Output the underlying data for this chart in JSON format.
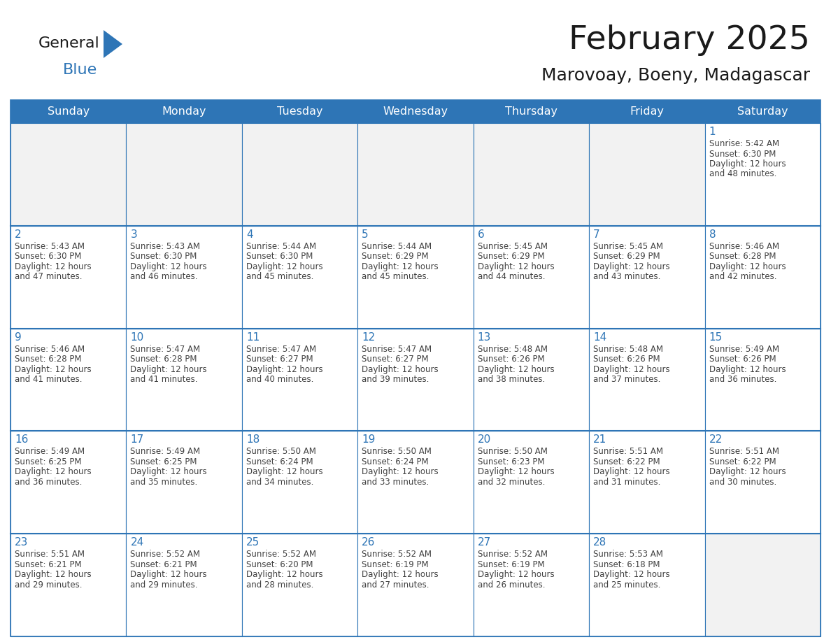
{
  "title": "February 2025",
  "subtitle": "Marovoay, Boeny, Madagascar",
  "header_bg": "#2e75b6",
  "header_text_color": "#ffffff",
  "cell_bg_normal": "#ffffff",
  "cell_bg_first_row": "#f2f2f2",
  "cell_border": "#2e75b6",
  "day_number_color": "#2e75b6",
  "info_text_color": "#404040",
  "days_of_week": [
    "Sunday",
    "Monday",
    "Tuesday",
    "Wednesday",
    "Thursday",
    "Friday",
    "Saturday"
  ],
  "calendar_data": [
    [
      null,
      null,
      null,
      null,
      null,
      null,
      {
        "day": "1",
        "sunrise": "5:42 AM",
        "sunset": "6:30 PM",
        "daylight_h": "12 hours",
        "daylight_m": "and 48 minutes."
      }
    ],
    [
      {
        "day": "2",
        "sunrise": "5:43 AM",
        "sunset": "6:30 PM",
        "daylight_h": "12 hours",
        "daylight_m": "and 47 minutes."
      },
      {
        "day": "3",
        "sunrise": "5:43 AM",
        "sunset": "6:30 PM",
        "daylight_h": "12 hours",
        "daylight_m": "and 46 minutes."
      },
      {
        "day": "4",
        "sunrise": "5:44 AM",
        "sunset": "6:30 PM",
        "daylight_h": "12 hours",
        "daylight_m": "and 45 minutes."
      },
      {
        "day": "5",
        "sunrise": "5:44 AM",
        "sunset": "6:29 PM",
        "daylight_h": "12 hours",
        "daylight_m": "and 45 minutes."
      },
      {
        "day": "6",
        "sunrise": "5:45 AM",
        "sunset": "6:29 PM",
        "daylight_h": "12 hours",
        "daylight_m": "and 44 minutes."
      },
      {
        "day": "7",
        "sunrise": "5:45 AM",
        "sunset": "6:29 PM",
        "daylight_h": "12 hours",
        "daylight_m": "and 43 minutes."
      },
      {
        "day": "8",
        "sunrise": "5:46 AM",
        "sunset": "6:28 PM",
        "daylight_h": "12 hours",
        "daylight_m": "and 42 minutes."
      }
    ],
    [
      {
        "day": "9",
        "sunrise": "5:46 AM",
        "sunset": "6:28 PM",
        "daylight_h": "12 hours",
        "daylight_m": "and 41 minutes."
      },
      {
        "day": "10",
        "sunrise": "5:47 AM",
        "sunset": "6:28 PM",
        "daylight_h": "12 hours",
        "daylight_m": "and 41 minutes."
      },
      {
        "day": "11",
        "sunrise": "5:47 AM",
        "sunset": "6:27 PM",
        "daylight_h": "12 hours",
        "daylight_m": "and 40 minutes."
      },
      {
        "day": "12",
        "sunrise": "5:47 AM",
        "sunset": "6:27 PM",
        "daylight_h": "12 hours",
        "daylight_m": "and 39 minutes."
      },
      {
        "day": "13",
        "sunrise": "5:48 AM",
        "sunset": "6:26 PM",
        "daylight_h": "12 hours",
        "daylight_m": "and 38 minutes."
      },
      {
        "day": "14",
        "sunrise": "5:48 AM",
        "sunset": "6:26 PM",
        "daylight_h": "12 hours",
        "daylight_m": "and 37 minutes."
      },
      {
        "day": "15",
        "sunrise": "5:49 AM",
        "sunset": "6:26 PM",
        "daylight_h": "12 hours",
        "daylight_m": "and 36 minutes."
      }
    ],
    [
      {
        "day": "16",
        "sunrise": "5:49 AM",
        "sunset": "6:25 PM",
        "daylight_h": "12 hours",
        "daylight_m": "and 36 minutes."
      },
      {
        "day": "17",
        "sunrise": "5:49 AM",
        "sunset": "6:25 PM",
        "daylight_h": "12 hours",
        "daylight_m": "and 35 minutes."
      },
      {
        "day": "18",
        "sunrise": "5:50 AM",
        "sunset": "6:24 PM",
        "daylight_h": "12 hours",
        "daylight_m": "and 34 minutes."
      },
      {
        "day": "19",
        "sunrise": "5:50 AM",
        "sunset": "6:24 PM",
        "daylight_h": "12 hours",
        "daylight_m": "and 33 minutes."
      },
      {
        "day": "20",
        "sunrise": "5:50 AM",
        "sunset": "6:23 PM",
        "daylight_h": "12 hours",
        "daylight_m": "and 32 minutes."
      },
      {
        "day": "21",
        "sunrise": "5:51 AM",
        "sunset": "6:22 PM",
        "daylight_h": "12 hours",
        "daylight_m": "and 31 minutes."
      },
      {
        "day": "22",
        "sunrise": "5:51 AM",
        "sunset": "6:22 PM",
        "daylight_h": "12 hours",
        "daylight_m": "and 30 minutes."
      }
    ],
    [
      {
        "day": "23",
        "sunrise": "5:51 AM",
        "sunset": "6:21 PM",
        "daylight_h": "12 hours",
        "daylight_m": "and 29 minutes."
      },
      {
        "day": "24",
        "sunrise": "5:52 AM",
        "sunset": "6:21 PM",
        "daylight_h": "12 hours",
        "daylight_m": "and 29 minutes."
      },
      {
        "day": "25",
        "sunrise": "5:52 AM",
        "sunset": "6:20 PM",
        "daylight_h": "12 hours",
        "daylight_m": "and 28 minutes."
      },
      {
        "day": "26",
        "sunrise": "5:52 AM",
        "sunset": "6:19 PM",
        "daylight_h": "12 hours",
        "daylight_m": "and 27 minutes."
      },
      {
        "day": "27",
        "sunrise": "5:52 AM",
        "sunset": "6:19 PM",
        "daylight_h": "12 hours",
        "daylight_m": "and 26 minutes."
      },
      {
        "day": "28",
        "sunrise": "5:53 AM",
        "sunset": "6:18 PM",
        "daylight_h": "12 hours",
        "daylight_m": "and 25 minutes."
      },
      null
    ]
  ],
  "logo_general_color": "#1a1a1a",
  "logo_blue_color": "#2e75b6",
  "title_fontsize": 34,
  "subtitle_fontsize": 18,
  "header_fontsize": 11.5,
  "day_number_fontsize": 11,
  "info_fontsize": 8.5
}
